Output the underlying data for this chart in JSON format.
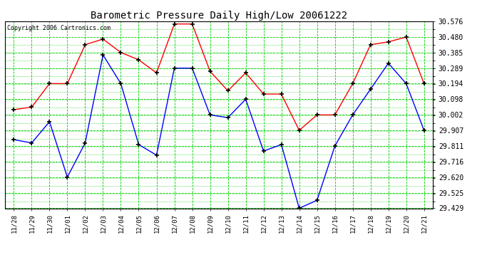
{
  "title": "Barometric Pressure Daily High/Low 20061222",
  "copyright": "Copyright 2006 Cartronics.com",
  "x_labels": [
    "11/28",
    "11/29",
    "11/30",
    "12/01",
    "12/02",
    "12/03",
    "12/04",
    "12/05",
    "12/06",
    "12/07",
    "12/08",
    "12/09",
    "12/10",
    "12/11",
    "12/12",
    "12/13",
    "12/14",
    "12/15",
    "12/16",
    "12/17",
    "12/18",
    "12/19",
    "12/20",
    "12/21"
  ],
  "high_values": [
    30.034,
    30.05,
    30.194,
    30.194,
    30.433,
    30.467,
    30.385,
    30.34,
    30.26,
    30.56,
    30.56,
    30.27,
    30.15,
    30.26,
    30.13,
    30.13,
    29.907,
    30.002,
    30.002,
    30.194,
    30.433,
    30.45,
    30.48,
    30.194
  ],
  "low_values": [
    29.85,
    29.83,
    29.96,
    29.62,
    29.83,
    30.37,
    30.194,
    29.82,
    29.755,
    30.289,
    30.289,
    30.002,
    29.985,
    30.098,
    29.78,
    29.82,
    29.429,
    29.478,
    29.811,
    30.002,
    30.16,
    30.319,
    30.194,
    29.907
  ],
  "high_color": "#ff0000",
  "low_color": "#0000ff",
  "bg_color": "#ffffff",
  "grid_color": "#00cc00",
  "title_color": "#000000",
  "copyright_color": "#000000",
  "y_min": 29.429,
  "y_max": 30.576,
  "y_ticks": [
    29.429,
    29.525,
    29.62,
    29.716,
    29.811,
    29.907,
    30.002,
    30.098,
    30.194,
    30.289,
    30.385,
    30.48,
    30.576
  ]
}
